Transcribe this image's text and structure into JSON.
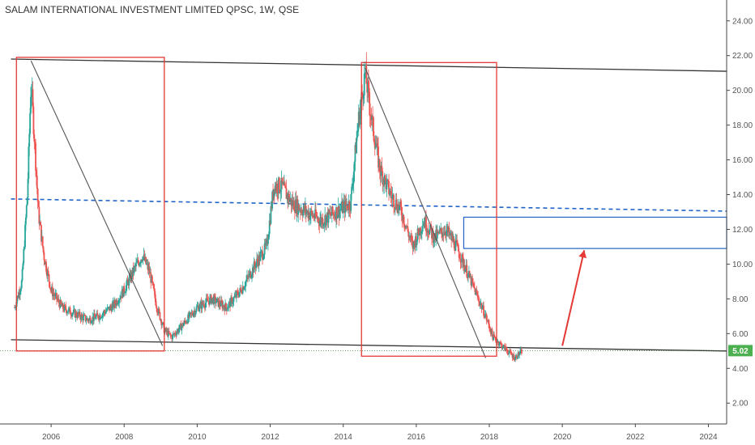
{
  "title": "SALAM INTERNATIONAL INVESTMENT LIMITED QPSC, 1W, QSE",
  "colors": {
    "up": "#26a69a",
    "down": "#ef5350",
    "annotation_red": "#e53935",
    "annotation_blue": "#1e63c8",
    "trendline": "#333333",
    "price_tag": "#4caf50",
    "axis": "#444444"
  },
  "chart_data": {
    "type": "candlestick",
    "title": "SALAM INTERNATIONAL INVESTMENT LIMITED QPSC, 1W, QSE",
    "timeframe": "1W",
    "exchange": "QSE",
    "xlim": [
      2004.6,
      2024.5
    ],
    "ylim": [
      0.8,
      25.2
    ],
    "x_ticks": [
      "2006",
      "2008",
      "2010",
      "2012",
      "2014",
      "2016",
      "2018",
      "2020",
      "2022",
      "2024"
    ],
    "y_ticks": [
      "24.00",
      "22.00",
      "20.00",
      "18.00",
      "16.00",
      "14.00",
      "12.00",
      "10.00",
      "8.00",
      "6.00",
      "4.00",
      "2.00"
    ],
    "last_price": "5.02",
    "last_price_value": 5.02,
    "price_path": [
      [
        2005.0,
        7.5
      ],
      [
        2005.2,
        9.0
      ],
      [
        2005.35,
        14.0
      ],
      [
        2005.45,
        20.5
      ],
      [
        2005.55,
        17.0
      ],
      [
        2005.65,
        13.0
      ],
      [
        2005.8,
        10.5
      ],
      [
        2006.0,
        8.5
      ],
      [
        2006.3,
        7.5
      ],
      [
        2006.6,
        7.2
      ],
      [
        2007.0,
        6.8
      ],
      [
        2007.3,
        7.0
      ],
      [
        2007.7,
        7.6
      ],
      [
        2008.0,
        8.5
      ],
      [
        2008.3,
        9.8
      ],
      [
        2008.5,
        10.5
      ],
      [
        2008.7,
        9.5
      ],
      [
        2008.9,
        7.5
      ],
      [
        2009.1,
        6.2
      ],
      [
        2009.3,
        5.8
      ],
      [
        2009.6,
        6.5
      ],
      [
        2010.0,
        7.5
      ],
      [
        2010.4,
        8.0
      ],
      [
        2010.8,
        7.5
      ],
      [
        2011.2,
        8.5
      ],
      [
        2011.6,
        10.0
      ],
      [
        2011.9,
        11.0
      ],
      [
        2012.1,
        14.5
      ],
      [
        2012.3,
        14.5
      ],
      [
        2012.6,
        13.5
      ],
      [
        2013.0,
        13.0
      ],
      [
        2013.4,
        12.5
      ],
      [
        2013.8,
        13.0
      ],
      [
        2014.2,
        13.5
      ],
      [
        2014.4,
        18.0
      ],
      [
        2014.6,
        21.0
      ],
      [
        2014.8,
        18.0
      ],
      [
        2015.0,
        15.5
      ],
      [
        2015.3,
        14.0
      ],
      [
        2015.6,
        13.0
      ],
      [
        2015.9,
        11.0
      ],
      [
        2016.2,
        12.5
      ],
      [
        2016.5,
        11.5
      ],
      [
        2016.8,
        12.0
      ],
      [
        2017.1,
        11.0
      ],
      [
        2017.4,
        9.5
      ],
      [
        2017.7,
        8.0
      ],
      [
        2017.9,
        7.0
      ],
      [
        2018.1,
        5.8
      ],
      [
        2018.4,
        5.2
      ],
      [
        2018.7,
        4.6
      ],
      [
        2018.9,
        5.0
      ]
    ],
    "annotations": {
      "channel_top": [
        [
          2004.9,
          21.8
        ],
        [
          2024.5,
          21.1
        ]
      ],
      "channel_bottom": [
        [
          2004.9,
          5.65
        ],
        [
          2024.5,
          5.0
        ]
      ],
      "mid_dashed": [
        [
          2004.9,
          13.75
        ],
        [
          2024.5,
          13.05
        ]
      ],
      "drop_line_1": [
        [
          2005.45,
          21.7
        ],
        [
          2009.05,
          5.3
        ]
      ],
      "drop_line_2": [
        [
          2014.6,
          21.3
        ],
        [
          2017.9,
          4.6
        ]
      ],
      "red_box_1": [
        2005.05,
        2009.1,
        5.0,
        21.9
      ],
      "red_box_2": [
        2014.5,
        2018.2,
        4.7,
        21.6
      ],
      "blue_target_zone": [
        2017.3,
        2024.5,
        10.9,
        12.7
      ],
      "up_arrow": [
        [
          2020.0,
          5.3
        ],
        [
          2020.6,
          10.8
        ]
      ]
    }
  }
}
